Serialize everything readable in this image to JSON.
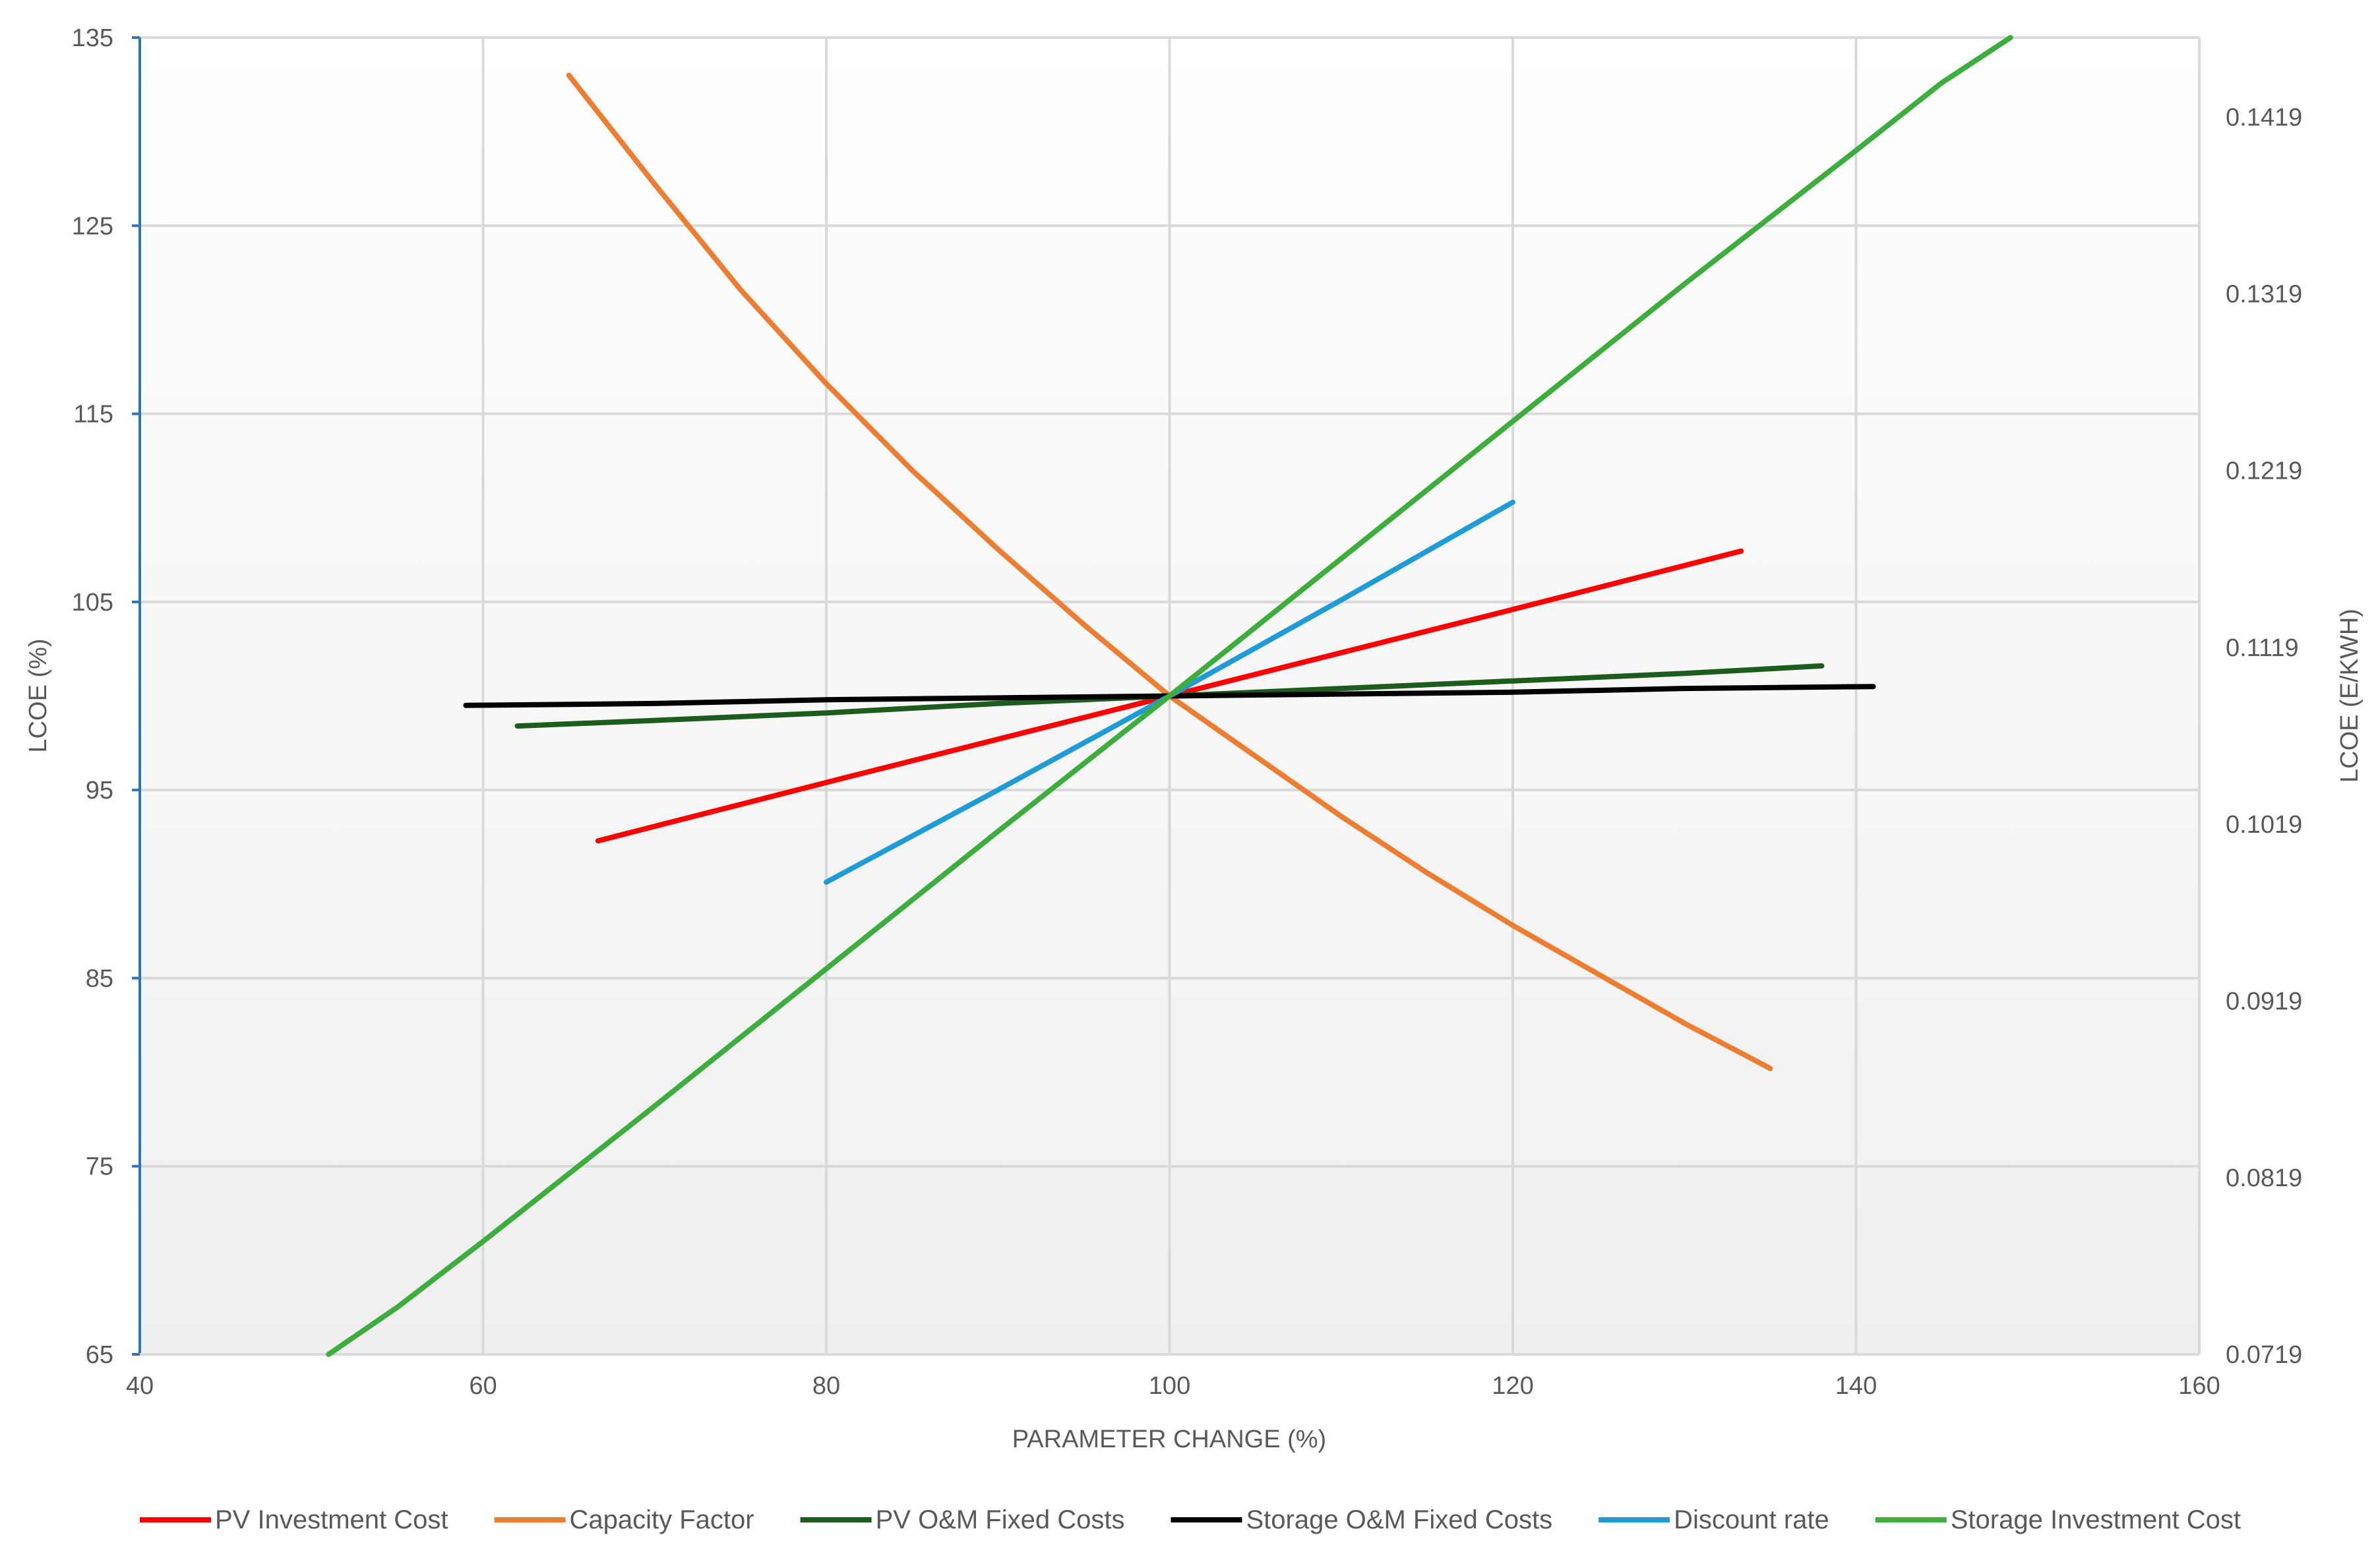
{
  "chart_data": {
    "type": "line",
    "xlabel": "PARAMETER CHANGE (%)",
    "ylabel": "LCOE (%)",
    "y2label": "LCOE (E/KWH)",
    "xlim": [
      40,
      160
    ],
    "ylim": [
      65,
      135
    ],
    "y2lim": [
      0.0719,
      0.1464
    ],
    "x_ticks": [
      40,
      60,
      80,
      100,
      120,
      140,
      160
    ],
    "y_ticks": [
      65,
      75,
      85,
      95,
      105,
      115,
      125,
      135
    ],
    "y2_ticks": [
      "0.0719",
      "0.0819",
      "0.0919",
      "0.1019",
      "0.1119",
      "0.1219",
      "0.1319",
      "0.1419"
    ],
    "grid": true,
    "legend_position": "bottom",
    "series": [
      {
        "name": "PV Investment Cost",
        "color": "#ff0000",
        "points": [
          [
            66.7,
            92.3
          ],
          [
            80,
            95.4
          ],
          [
            100,
            100
          ],
          [
            120,
            104.6
          ],
          [
            133.3,
            107.7
          ]
        ]
      },
      {
        "name": "Capacity Factor",
        "color": "#ed7d31",
        "points": [
          [
            65,
            133
          ],
          [
            70,
            127.2
          ],
          [
            75,
            121.6
          ],
          [
            80,
            116.6
          ],
          [
            85,
            112
          ],
          [
            90,
            107.8
          ],
          [
            95,
            103.8
          ],
          [
            100,
            100
          ],
          [
            105,
            96.8
          ],
          [
            110,
            93.6
          ],
          [
            115,
            90.6
          ],
          [
            120,
            87.8
          ],
          [
            125,
            85.2
          ],
          [
            130,
            82.6
          ],
          [
            135,
            80.2
          ]
        ]
      },
      {
        "name": "PV O&M Fixed Costs",
        "color": "#1e5c1e",
        "points": [
          [
            62,
            98.4
          ],
          [
            70,
            98.7
          ],
          [
            80,
            99.1
          ],
          [
            90,
            99.6
          ],
          [
            100,
            100
          ],
          [
            110,
            100.4
          ],
          [
            120,
            100.8
          ],
          [
            130,
            101.2
          ],
          [
            138,
            101.6
          ]
        ]
      },
      {
        "name": "Storage O&M Fixed Costs",
        "color": "#000000",
        "points": [
          [
            59,
            99.5
          ],
          [
            70,
            99.6
          ],
          [
            80,
            99.8
          ],
          [
            90,
            99.9
          ],
          [
            100,
            100
          ],
          [
            110,
            100.1
          ],
          [
            120,
            100.2
          ],
          [
            130,
            100.4
          ],
          [
            141,
            100.5
          ]
        ]
      },
      {
        "name": "Discount rate",
        "color": "#1f9bd7",
        "points": [
          [
            80,
            90.1
          ],
          [
            90,
            95
          ],
          [
            100,
            100
          ],
          [
            110,
            105.1
          ],
          [
            120,
            110.3
          ]
        ]
      },
      {
        "name": "Storage Investment Cost",
        "color": "#3dae3d",
        "points": [
          [
            51,
            65
          ],
          [
            55,
            67.5
          ],
          [
            60,
            71
          ],
          [
            70,
            78.2
          ],
          [
            80,
            85.5
          ],
          [
            90,
            92.8
          ],
          [
            100,
            100
          ],
          [
            110,
            107.3
          ],
          [
            120,
            114.6
          ],
          [
            130,
            121.9
          ],
          [
            140,
            129
          ],
          [
            145,
            132.6
          ],
          [
            149,
            135
          ]
        ]
      }
    ]
  }
}
